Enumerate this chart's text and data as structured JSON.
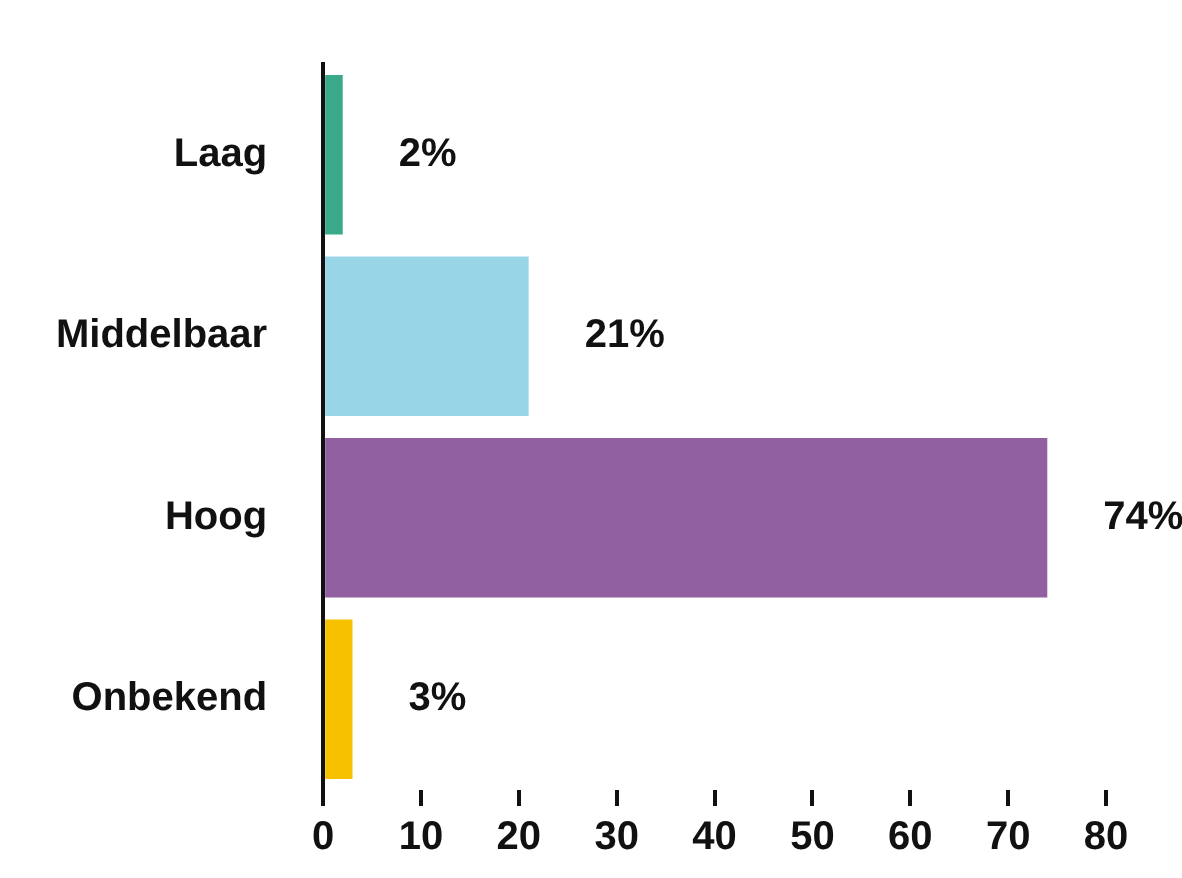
{
  "chart_data": {
    "type": "bar",
    "orientation": "horizontal",
    "categories": [
      "Laag",
      "Middelbaar",
      "Hoog",
      "Onbekend"
    ],
    "values": [
      2,
      21,
      74,
      3
    ],
    "colors": [
      "#3aa98a",
      "#98d5e7",
      "#9160a0",
      "#f6c200"
    ],
    "value_labels": [
      "2%",
      "21%",
      "74%",
      "3%"
    ],
    "xlim": [
      0,
      80
    ],
    "xticks": [
      0,
      10,
      20,
      30,
      40,
      50,
      60,
      70,
      80
    ],
    "grid": false,
    "legend": false
  }
}
